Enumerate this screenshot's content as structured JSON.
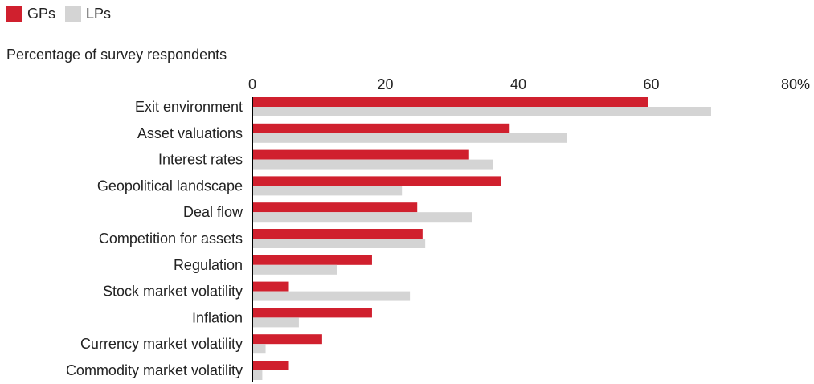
{
  "legend": {
    "gps_label": "GPs",
    "lps_label": "LPs"
  },
  "subtitle": "Percentage of survey respondents",
  "colors": {
    "gps": "#d0202e",
    "lps": "#d4d4d4",
    "axis": "#000000",
    "text": "#222222"
  },
  "chart_data": {
    "type": "bar",
    "orientation": "horizontal",
    "categories": [
      "Exit environment",
      "Asset valuations",
      "Interest rates",
      "Geopolitical landscape",
      "Deal flow",
      "Competition for assets",
      "Regulation",
      "Stock market volatility",
      "Inflation",
      "Currency market volatility",
      "Commodity market volatility"
    ],
    "series": [
      {
        "name": "GPs",
        "values": [
          59.5,
          38.7,
          32.6,
          37.4,
          24.8,
          25.6,
          18.0,
          5.5,
          18.0,
          10.5,
          5.5
        ]
      },
      {
        "name": "LPs",
        "values": [
          69.0,
          47.3,
          36.2,
          22.5,
          33.0,
          26.0,
          12.7,
          23.7,
          7.0,
          2.0,
          1.5
        ]
      }
    ],
    "xlim": [
      0,
      80
    ],
    "x_ticks": [
      0,
      20,
      40,
      60,
      80
    ],
    "x_tick_labels": [
      "0",
      "20",
      "40",
      "60",
      "80%"
    ],
    "xlabel": "Percentage of survey respondents",
    "ylabel": "",
    "title": "",
    "grid": false,
    "legend_position": "top-left",
    "x_axis_position": "top"
  }
}
